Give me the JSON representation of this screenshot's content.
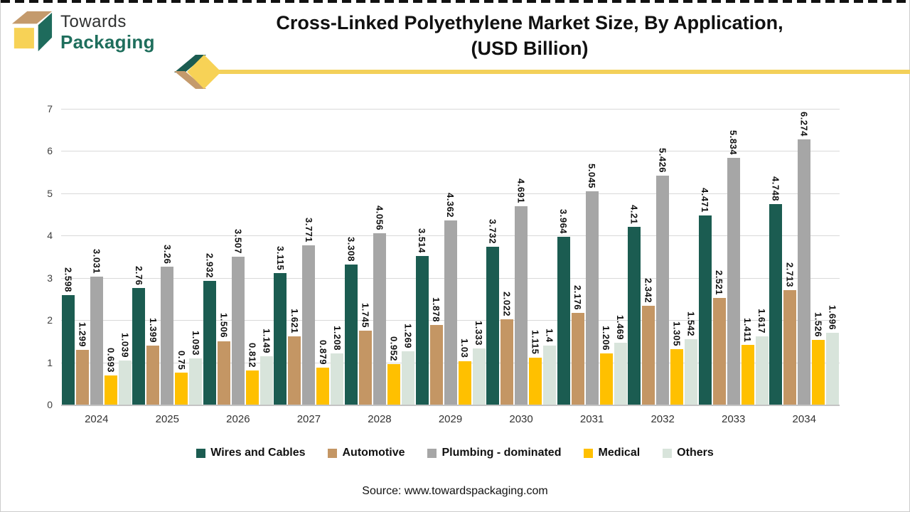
{
  "header": {
    "logo": {
      "line1": "Towards",
      "line2": "Packaging"
    },
    "title_line1": "Cross-Linked Polyethylene Market Size, By Application,",
    "title_line2": "(USD Billion)"
  },
  "chart_data": {
    "type": "bar",
    "title": "Cross-Linked Polyethylene Market Size, By Application, (USD Billion)",
    "categories": [
      "2024",
      "2025",
      "2026",
      "2027",
      "2028",
      "2029",
      "2030",
      "2031",
      "2032",
      "2033",
      "2034"
    ],
    "series": [
      {
        "name": "Wires and Cables",
        "color": "#1B5C51",
        "values": [
          2.598,
          2.76,
          2.932,
          3.115,
          3.308,
          3.514,
          3.732,
          3.964,
          4.21,
          4.471,
          4.748
        ]
      },
      {
        "name": "Automotive",
        "color": "#C49664",
        "values": [
          1.299,
          1.399,
          1.506,
          1.621,
          1.745,
          1.878,
          2.022,
          2.176,
          2.342,
          2.521,
          2.713
        ]
      },
      {
        "name": "Plumbing - dominated",
        "color": "#A6A6A6",
        "values": [
          3.031,
          3.26,
          3.507,
          3.771,
          4.056,
          4.362,
          4.691,
          5.045,
          5.426,
          5.834,
          6.274
        ]
      },
      {
        "name": "Medical",
        "color": "#FFC000",
        "values": [
          0.693,
          0.75,
          0.812,
          0.879,
          0.952,
          1.03,
          1.115,
          1.206,
          1.305,
          1.411,
          1.526
        ]
      },
      {
        "name": "Others",
        "color": "#D8E4DB",
        "values": [
          1.039,
          1.093,
          1.149,
          1.208,
          1.269,
          1.333,
          1.4,
          1.469,
          1.542,
          1.617,
          1.696
        ]
      }
    ],
    "ylim": [
      0,
      7
    ],
    "yticks": [
      0,
      1,
      2,
      3,
      4,
      5,
      6,
      7
    ],
    "grid": true,
    "legend_position": "bottom",
    "data_labels": "rotated-vertical"
  },
  "footer": {
    "source": "Source: www.towardspackaging.com"
  },
  "colors": {
    "accent_line_yellow": "#F3D05A",
    "logo_green": "#1E6B5C",
    "logo_yellow": "#F7D256",
    "logo_tan": "#C49A6C",
    "grid_gray": "#D9D9D9"
  }
}
